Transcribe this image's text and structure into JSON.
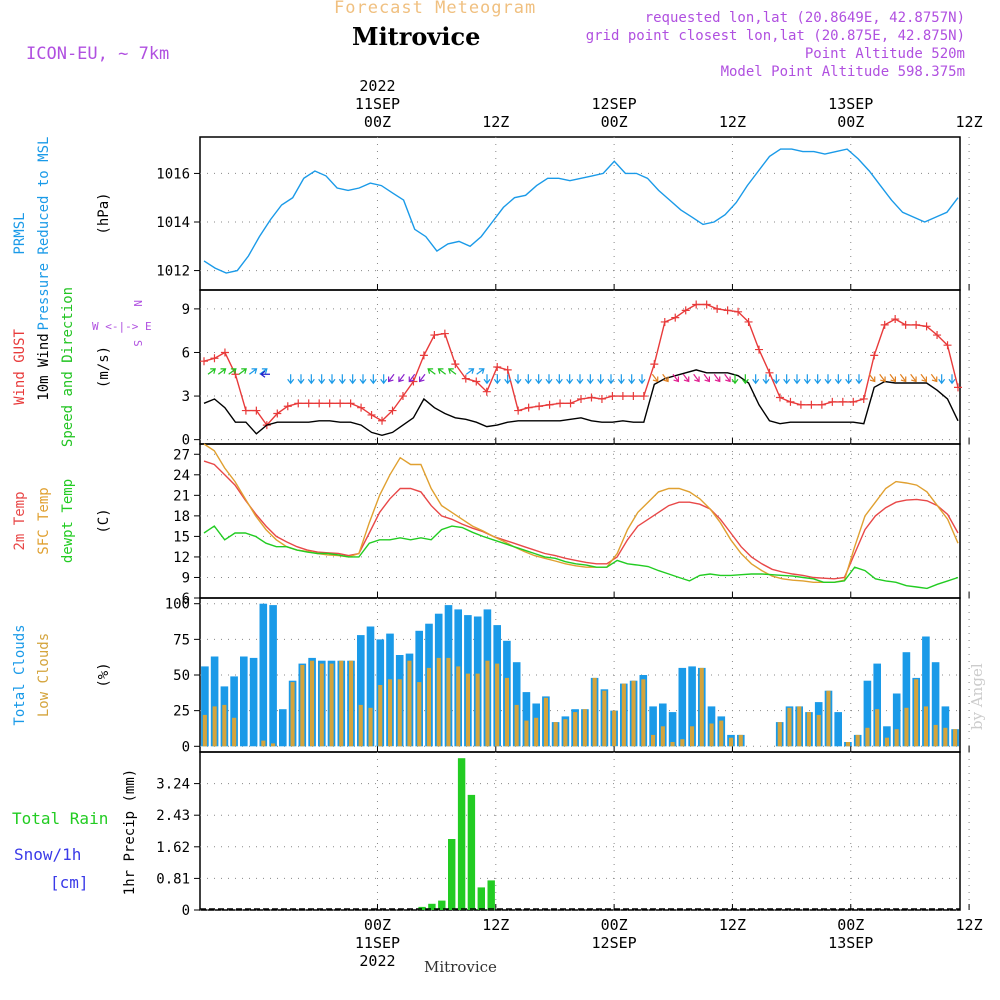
{
  "header": {
    "forecast_title": "Forecast Meteogram",
    "location": "Mitrovice",
    "model": "ICON-EU, ~ 7km",
    "requested": "requested lon,lat (20.8649E, 42.8757N)",
    "grid_point": "grid point closest lon,lat (20.875E, 42.875N)",
    "point_altitude": "Point Altitude 520m",
    "model_altitude": "Model Point Altitude 598.375m",
    "credit": "by Angel",
    "bottom_location": "Mitrovice"
  },
  "colors": {
    "pressure": "#1a9ae8",
    "gust": "#e83a3a",
    "wind": "#000000",
    "dir": "#22c422",
    "t2m": "#e84848",
    "sfc": "#e0a030",
    "dewpt": "#22cc22",
    "total_clouds": "#1a9ae8",
    "low_clouds": "#d4a43c",
    "rain": "#22cc22",
    "snow": "#3a3ae8",
    "header_orange": "#f0c080",
    "purple": "#b050e0",
    "grid": "#888888"
  },
  "chart_data": [
    {
      "type": "line",
      "panel": "pressure",
      "ylabel_lines": [
        "PRMSL",
        "Pressure Reduced to MSL"
      ],
      "unit": "(hPa)",
      "yticks": [
        1012,
        1014,
        1016
      ],
      "ylim": [
        1011.2,
        1017.5
      ],
      "series": [
        {
          "name": "PRMSL",
          "values": [
            1012.4,
            1012.1,
            1011.9,
            1012.0,
            1012.6,
            1013.4,
            1014.1,
            1014.7,
            1015.0,
            1015.8,
            1016.1,
            1015.9,
            1015.4,
            1015.3,
            1015.4,
            1015.6,
            1015.5,
            1015.2,
            1014.9,
            1013.7,
            1013.4,
            1012.8,
            1013.1,
            1013.2,
            1013.0,
            1013.4,
            1014.0,
            1014.6,
            1015.0,
            1015.1,
            1015.5,
            1015.8,
            1015.8,
            1015.7,
            1015.8,
            1015.9,
            1016.0,
            1016.5,
            1016.0,
            1016.0,
            1015.8,
            1015.3,
            1014.9,
            1014.5,
            1014.2,
            1013.9,
            1014.0,
            1014.3,
            1014.8,
            1015.5,
            1016.1,
            1016.7,
            1017.0,
            1017.0,
            1016.9,
            1016.9,
            1016.8,
            1016.9,
            1017.0,
            1016.6,
            1016.1,
            1015.5,
            1014.9,
            1014.4,
            1014.2,
            1014.0,
            1014.2,
            1014.4,
            1015.0
          ]
        }
      ]
    },
    {
      "type": "line",
      "panel": "wind",
      "ylabel_lines": [
        "Wind GUST",
        "10m Wind",
        "Speed and Direction"
      ],
      "unit": "(m/s)",
      "compass": [
        "N",
        "W <-|-> E",
        "S"
      ],
      "yticks": [
        0,
        3,
        6,
        9
      ],
      "ylim": [
        -0.3,
        10.3
      ],
      "series": [
        {
          "name": "Wind GUST",
          "values": [
            5.4,
            5.6,
            6.0,
            4.5,
            2.0,
            2.0,
            1.0,
            1.8,
            2.3,
            2.5,
            2.5,
            2.5,
            2.5,
            2.5,
            2.5,
            2.2,
            1.7,
            1.3,
            2.0,
            3.0,
            4.0,
            5.8,
            7.2,
            7.3,
            5.2,
            4.2,
            4.0,
            3.3,
            5.0,
            4.8,
            2.0,
            2.2,
            2.3,
            2.4,
            2.5,
            2.5,
            2.8,
            2.9,
            2.8,
            3.0,
            3.0,
            3.0,
            3.0,
            5.2,
            8.1,
            8.4,
            8.9,
            9.3,
            9.3,
            9.0,
            8.9,
            8.8,
            8.1,
            6.2,
            4.6,
            2.9,
            2.6,
            2.4,
            2.4,
            2.4,
            2.6,
            2.6,
            2.6,
            2.8,
            5.8,
            7.9,
            8.3,
            7.9,
            7.9,
            7.8,
            7.2,
            6.5,
            3.6
          ]
        },
        {
          "name": "10m Wind",
          "values": [
            2.5,
            2.8,
            2.2,
            1.2,
            1.2,
            0.4,
            1.0,
            1.2,
            1.2,
            1.2,
            1.2,
            1.3,
            1.3,
            1.2,
            1.2,
            1.0,
            0.5,
            0.3,
            0.5,
            1.0,
            1.5,
            2.8,
            2.2,
            1.8,
            1.5,
            1.4,
            1.2,
            0.9,
            1.0,
            1.2,
            1.3,
            1.3,
            1.3,
            1.3,
            1.3,
            1.4,
            1.5,
            1.3,
            1.2,
            1.2,
            1.3,
            1.2,
            1.2,
            3.8,
            4.2,
            4.4,
            4.6,
            4.8,
            4.6,
            4.6,
            4.6,
            4.4,
            3.9,
            2.4,
            1.3,
            1.1,
            1.2,
            1.2,
            1.2,
            1.2,
            1.2,
            1.2,
            1.2,
            1.1,
            3.6,
            4.0,
            3.9,
            3.9,
            3.9,
            3.9,
            3.4,
            2.8,
            1.3
          ]
        }
      ]
    },
    {
      "type": "line",
      "panel": "temperature",
      "ylabel_lines": [
        "2m Temp",
        "SFC Temp",
        "dewpt Temp"
      ],
      "unit": "(C)",
      "yticks": [
        6,
        9,
        12,
        15,
        18,
        21,
        24,
        27
      ],
      "ylim": [
        6,
        28.5
      ],
      "series": [
        {
          "name": "2m Temp",
          "values": [
            26.0,
            25.5,
            24.0,
            22.5,
            20.3,
            18.3,
            16.5,
            15.0,
            14.2,
            13.5,
            13.0,
            12.7,
            12.6,
            12.5,
            12.2,
            12.5,
            15.5,
            18.5,
            20.5,
            22.0,
            22.0,
            21.5,
            19.5,
            18.0,
            17.5,
            16.8,
            16.2,
            15.7,
            15.0,
            14.5,
            14.0,
            13.5,
            13.0,
            12.5,
            12.2,
            11.8,
            11.5,
            11.2,
            11.0,
            11.0,
            12.0,
            14.5,
            16.5,
            17.5,
            18.5,
            19.5,
            20.0,
            20.0,
            19.7,
            19.0,
            17.5,
            15.5,
            13.5,
            12.0,
            11.0,
            10.2,
            9.8,
            9.5,
            9.3,
            9.0,
            8.9,
            8.8,
            9.0,
            12.5,
            16.0,
            18.0,
            19.2,
            20.0,
            20.3,
            20.4,
            20.2,
            19.5,
            18.2,
            15.5
          ]
        },
        {
          "name": "SFC Temp",
          "values": [
            28.5,
            27.5,
            25.0,
            23.0,
            20.5,
            18.0,
            16.0,
            14.5,
            13.5,
            13.0,
            12.8,
            12.5,
            12.3,
            12.2,
            12.0,
            12.5,
            17.0,
            21.0,
            24.0,
            26.5,
            25.5,
            25.5,
            22.0,
            19.5,
            18.5,
            17.5,
            16.5,
            15.8,
            15.0,
            14.3,
            13.5,
            12.8,
            12.2,
            11.8,
            11.4,
            11.0,
            10.7,
            10.5,
            10.5,
            10.5,
            12.5,
            16.0,
            18.5,
            20.0,
            21.5,
            22.0,
            22.0,
            21.5,
            20.5,
            19.0,
            17.0,
            14.5,
            12.5,
            11.0,
            10.0,
            9.2,
            8.8,
            8.6,
            8.5,
            8.3,
            8.3,
            8.3,
            8.6,
            13.5,
            18.0,
            20.0,
            22.0,
            23.0,
            22.8,
            22.5,
            21.5,
            19.5,
            17.5,
            14.0
          ]
        },
        {
          "name": "dewpt Temp",
          "values": [
            15.5,
            16.5,
            14.5,
            15.5,
            15.5,
            15.0,
            14.0,
            13.5,
            13.5,
            13.0,
            12.7,
            12.5,
            12.5,
            12.3,
            12.0,
            12.0,
            14.0,
            14.5,
            14.5,
            14.8,
            14.5,
            14.8,
            14.5,
            16.0,
            16.5,
            16.3,
            15.6,
            15.0,
            14.5,
            14.0,
            13.5,
            13.0,
            12.5,
            12.0,
            11.8,
            11.3,
            11.0,
            10.8,
            10.5,
            10.5,
            11.5,
            11.0,
            10.8,
            10.6,
            10.0,
            9.5,
            9.0,
            8.5,
            9.3,
            9.5,
            9.3,
            9.3,
            9.4,
            9.5,
            9.5,
            9.4,
            9.3,
            9.2,
            9.0,
            8.8,
            8.3,
            8.3,
            8.5,
            10.5,
            10.0,
            8.8,
            8.5,
            8.3,
            7.8,
            7.6,
            7.4,
            8.0,
            8.5,
            9.0
          ]
        }
      ]
    },
    {
      "type": "bar",
      "panel": "clouds",
      "ylabel_lines": [
        "Total Clouds",
        "Low Clouds"
      ],
      "unit": "(%)",
      "yticks": [
        0,
        25,
        50,
        75,
        100
      ],
      "ylim": [
        -4,
        104
      ],
      "series": [
        {
          "name": "Total Clouds",
          "values": [
            56,
            63,
            42,
            49,
            63,
            62,
            100,
            99,
            26,
            46,
            58,
            62,
            60,
            60,
            60,
            60,
            78,
            84,
            75,
            79,
            64,
            65,
            81,
            86,
            93,
            99,
            96,
            92,
            91,
            96,
            85,
            74,
            59,
            38,
            30,
            35,
            17,
            21,
            26,
            26,
            48,
            40,
            25,
            44,
            46,
            50,
            28,
            30,
            24,
            55,
            56,
            55,
            28,
            21,
            8,
            8,
            0,
            0,
            0,
            17,
            28,
            28,
            24,
            31,
            39,
            24,
            3,
            8,
            46,
            58,
            14,
            37,
            66,
            48,
            77,
            59,
            28,
            12
          ]
        },
        {
          "name": "Low Clouds",
          "values": [
            22,
            28,
            29,
            20,
            0,
            0,
            4,
            2,
            0,
            45,
            57,
            60,
            58,
            58,
            60,
            60,
            29,
            27,
            43,
            47,
            47,
            60,
            45,
            55,
            62,
            62,
            56,
            51,
            51,
            60,
            58,
            48,
            29,
            18,
            20,
            34,
            17,
            19,
            24,
            26,
            48,
            39,
            25,
            44,
            46,
            47,
            8,
            14,
            3,
            5,
            14,
            55,
            16,
            18,
            6,
            8,
            0,
            0,
            0,
            17,
            27,
            28,
            24,
            22,
            39,
            0,
            3,
            8,
            13,
            26,
            6,
            12,
            27,
            47,
            28,
            15,
            13,
            12
          ]
        }
      ]
    },
    {
      "type": "bar",
      "panel": "precip",
      "ylabel_lines": [
        "Total Rain",
        "Snow/1h",
        "[cm]"
      ],
      "unit": "1hr Precip (mm)",
      "yticks": [
        0,
        0.81,
        1.62,
        2.43,
        3.24
      ],
      "ylim": [
        0,
        4.05
      ],
      "series": [
        {
          "name": "Total Rain",
          "values": [
            0,
            0,
            0,
            0,
            0,
            0,
            0,
            0,
            0,
            0,
            0,
            0,
            0,
            0,
            0,
            0,
            0,
            0,
            0,
            0,
            0,
            0,
            0.08,
            0.16,
            0.24,
            1.82,
            3.89,
            2.95,
            0.58,
            0.76,
            0,
            0,
            0,
            0,
            0,
            0,
            0,
            0,
            0,
            0,
            0,
            0,
            0,
            0,
            0,
            0,
            0,
            0,
            0,
            0,
            0,
            0,
            0,
            0,
            0,
            0,
            0,
            0,
            0,
            0,
            0,
            0,
            0,
            0,
            0,
            0,
            0,
            0,
            0,
            0,
            0,
            0,
            0,
            0,
            0,
            0,
            0
          ]
        }
      ]
    }
  ],
  "x_axis": {
    "top_ticks": [
      {
        "time": "00Z",
        "date": "11SEP",
        "year": "2022"
      },
      {
        "time": "12Z",
        "date": "",
        "year": ""
      },
      {
        "time": "00Z",
        "date": "12SEP",
        "year": ""
      },
      {
        "time": "12Z",
        "date": "",
        "year": ""
      },
      {
        "time": "00Z",
        "date": "13SEP",
        "year": ""
      },
      {
        "time": "12Z",
        "date": "",
        "year": ""
      }
    ]
  },
  "wind_arrows": [
    {
      "from": 0,
      "to": 4,
      "color": "#22c422",
      "dir": "ne"
    },
    {
      "from": 4,
      "to": 6,
      "color": "#1a9ae8",
      "dir": "ne"
    },
    {
      "from": 6,
      "to": 7,
      "color": "#2222cc",
      "dir": "w"
    },
    {
      "from": 8,
      "to": 18,
      "color": "#1a9ae8",
      "dir": "s"
    },
    {
      "from": 18,
      "to": 22,
      "color": "#8a22cc",
      "dir": "sw"
    },
    {
      "from": 22,
      "to": 25,
      "color": "#22c422",
      "dir": "nw"
    },
    {
      "from": 25,
      "to": 27,
      "color": "#1a9ae8",
      "dir": "ne"
    },
    {
      "from": 27,
      "to": 31,
      "color": "#1a9ae8",
      "dir": "s"
    },
    {
      "from": 31,
      "to": 43,
      "color": "#1a9ae8",
      "dir": "s"
    },
    {
      "from": 43,
      "to": 45,
      "color": "#e08020",
      "dir": "se"
    },
    {
      "from": 45,
      "to": 51,
      "color": "#e02090",
      "dir": "se"
    },
    {
      "from": 51,
      "to": 53,
      "color": "#22c422",
      "dir": "s"
    },
    {
      "from": 53,
      "to": 64,
      "color": "#1a9ae8",
      "dir": "s"
    },
    {
      "from": 64,
      "to": 71,
      "color": "#e08020",
      "dir": "se"
    },
    {
      "from": 71,
      "to": 73,
      "color": "#1a9ae8",
      "dir": "s"
    }
  ]
}
